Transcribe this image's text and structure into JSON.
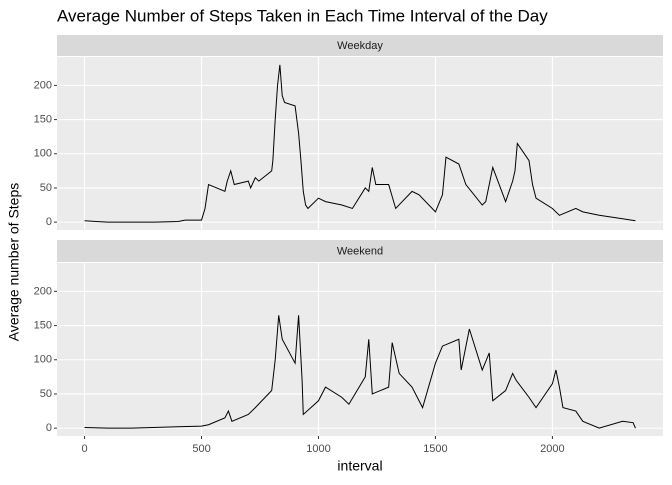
{
  "chart_data": {
    "type": "line",
    "title": "Average Number of Steps Taken in Each Time Interval of the Day",
    "x_label": "interval",
    "y_label": "Average number of Steps",
    "series": [
      {
        "name": "Weekday",
        "color": "#000000",
        "x": [
          0,
          50,
          100,
          200,
          300,
          400,
          430,
          500,
          515,
          530,
          600,
          610,
          625,
          640,
          700,
          710,
          730,
          745,
          800,
          805,
          815,
          825,
          835,
          845,
          855,
          900,
          915,
          925,
          935,
          945,
          955,
          1000,
          1030,
          1100,
          1145,
          1200,
          1215,
          1230,
          1245,
          1300,
          1330,
          1400,
          1430,
          1500,
          1530,
          1545,
          1600,
          1630,
          1700,
          1715,
          1745,
          1800,
          1830,
          1840,
          1850,
          1900,
          1915,
          1930,
          2000,
          2030,
          2100,
          2130,
          2200,
          2300,
          2355
        ],
        "values": [
          2,
          1,
          0,
          0,
          0,
          1,
          3,
          3,
          20,
          55,
          45,
          60,
          75,
          55,
          60,
          50,
          65,
          60,
          75,
          90,
          150,
          200,
          230,
          185,
          175,
          170,
          130,
          90,
          45,
          25,
          20,
          35,
          30,
          25,
          20,
          50,
          45,
          80,
          55,
          55,
          20,
          45,
          40,
          15,
          40,
          95,
          85,
          55,
          25,
          30,
          80,
          30,
          60,
          75,
          115,
          90,
          55,
          35,
          20,
          10,
          20,
          15,
          10,
          5,
          2
        ]
      },
      {
        "name": "Weekend",
        "color": "#000000",
        "x": [
          0,
          100,
          200,
          400,
          500,
          530,
          600,
          615,
          630,
          700,
          730,
          800,
          815,
          830,
          845,
          900,
          915,
          930,
          935,
          1000,
          1030,
          1100,
          1130,
          1200,
          1215,
          1230,
          1300,
          1315,
          1345,
          1400,
          1445,
          1500,
          1530,
          1600,
          1610,
          1645,
          1700,
          1730,
          1745,
          1800,
          1830,
          1845,
          1900,
          1930,
          2000,
          2015,
          2030,
          2045,
          2100,
          2130,
          2200,
          2300,
          2345,
          2355
        ],
        "values": [
          1,
          0,
          0,
          2,
          3,
          5,
          15,
          25,
          10,
          20,
          30,
          55,
          100,
          165,
          130,
          95,
          165,
          70,
          20,
          40,
          60,
          45,
          35,
          75,
          130,
          50,
          60,
          125,
          80,
          60,
          30,
          95,
          120,
          130,
          85,
          145,
          85,
          110,
          40,
          55,
          80,
          70,
          45,
          30,
          65,
          85,
          60,
          30,
          25,
          10,
          0,
          10,
          8,
          0
        ]
      }
    ],
    "xlim": [
      -117.75,
      2472.75
    ],
    "xticks": [
      0,
      500,
      1000,
      1500,
      2000
    ],
    "ylim": [
      -11.5,
      241.5
    ],
    "yticks": [
      0,
      50,
      100,
      150,
      200
    ],
    "grid": true
  }
}
